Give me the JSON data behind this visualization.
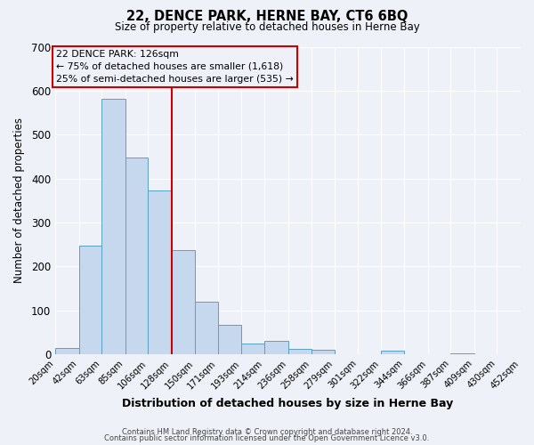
{
  "title": "22, DENCE PARK, HERNE BAY, CT6 6BQ",
  "subtitle": "Size of property relative to detached houses in Herne Bay",
  "xlabel": "Distribution of detached houses by size in Herne Bay",
  "ylabel": "Number of detached properties",
  "bar_edges": [
    20,
    42,
    63,
    85,
    106,
    128,
    150,
    171,
    193,
    214,
    236,
    258,
    279,
    301,
    322,
    344,
    366,
    387,
    409,
    430,
    452
  ],
  "bar_heights": [
    15,
    248,
    582,
    448,
    372,
    238,
    120,
    67,
    24,
    30,
    12,
    10,
    0,
    0,
    8,
    0,
    0,
    3,
    0,
    0,
    2
  ],
  "bar_color": "#c5d8ed",
  "bar_edge_color": "#5a9fc4",
  "vline_x": 128,
  "vline_color": "#cc0000",
  "annotation_line1": "22 DENCE PARK: 126sqm",
  "annotation_line2": "← 75% of detached houses are smaller (1,618)",
  "annotation_line3": "25% of semi-detached houses are larger (535) →",
  "annotation_box_color": "#cc0000",
  "ylim": [
    0,
    700
  ],
  "yticks": [
    0,
    100,
    200,
    300,
    400,
    500,
    600,
    700
  ],
  "tick_labels": [
    "20sqm",
    "42sqm",
    "63sqm",
    "85sqm",
    "106sqm",
    "128sqm",
    "150sqm",
    "171sqm",
    "193sqm",
    "214sqm",
    "236sqm",
    "258sqm",
    "279sqm",
    "301sqm",
    "322sqm",
    "344sqm",
    "366sqm",
    "387sqm",
    "409sqm",
    "430sqm",
    "452sqm"
  ],
  "footer_line1": "Contains HM Land Registry data © Crown copyright and database right 2024.",
  "footer_line2": "Contains public sector information licensed under the Open Government Licence v3.0.",
  "bg_color": "#eef2f8",
  "grid_color": "#ffffff"
}
